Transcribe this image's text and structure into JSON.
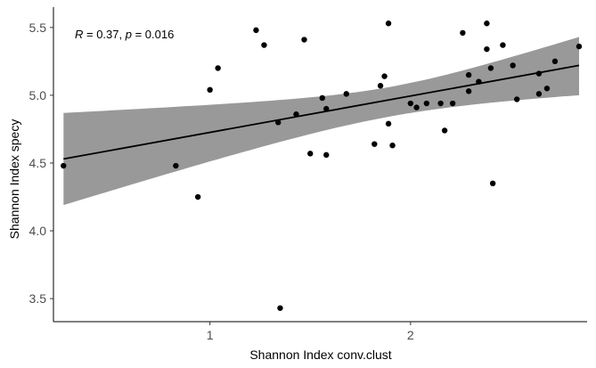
{
  "chart_data": {
    "type": "scatter",
    "title": "",
    "xlabel": "Shannon Index conv.clust",
    "ylabel": "Shannon Index specy",
    "xlim": [
      0.22,
      2.88
    ],
    "ylim": [
      3.33,
      5.65
    ],
    "x_ticks": [
      1,
      2
    ],
    "x_tick_labels": [
      "1",
      "2"
    ],
    "y_ticks": [
      3.5,
      4.0,
      4.5,
      5.0,
      5.5
    ],
    "y_tick_labels": [
      "3.5",
      "4.0",
      "4.5",
      "5.0",
      "5.5"
    ],
    "grid": false,
    "annotation": {
      "r_symbol": "R",
      "r_value": " = 0.37, ",
      "p_symbol": "p",
      "p_value": " = 0.016"
    },
    "regression": {
      "method": "lm",
      "x_start": 0.27,
      "x_end": 2.84,
      "y_start": 4.53,
      "y_end": 5.22,
      "ci_upper_start": 4.87,
      "ci_upper_end": 5.43,
      "ci_lower_start": 4.19,
      "ci_lower_end": 5.0,
      "ci_color": "#999999",
      "line_color": "#000000"
    },
    "point_color": "#000000",
    "points": [
      {
        "x": 0.27,
        "y": 4.48
      },
      {
        "x": 0.83,
        "y": 4.48
      },
      {
        "x": 0.94,
        "y": 4.25
      },
      {
        "x": 1.0,
        "y": 5.04
      },
      {
        "x": 1.04,
        "y": 5.2
      },
      {
        "x": 1.23,
        "y": 5.48
      },
      {
        "x": 1.27,
        "y": 5.37
      },
      {
        "x": 1.34,
        "y": 4.8
      },
      {
        "x": 1.35,
        "y": 3.43
      },
      {
        "x": 1.43,
        "y": 4.86
      },
      {
        "x": 1.47,
        "y": 5.41
      },
      {
        "x": 1.5,
        "y": 4.57
      },
      {
        "x": 1.56,
        "y": 4.98
      },
      {
        "x": 1.58,
        "y": 4.56
      },
      {
        "x": 1.58,
        "y": 4.9
      },
      {
        "x": 1.68,
        "y": 5.01
      },
      {
        "x": 1.82,
        "y": 4.64
      },
      {
        "x": 1.85,
        "y": 5.07
      },
      {
        "x": 1.87,
        "y": 5.14
      },
      {
        "x": 1.89,
        "y": 5.53
      },
      {
        "x": 1.89,
        "y": 4.79
      },
      {
        "x": 1.91,
        "y": 4.63
      },
      {
        "x": 2.0,
        "y": 4.94
      },
      {
        "x": 2.03,
        "y": 4.91
      },
      {
        "x": 2.08,
        "y": 4.94
      },
      {
        "x": 2.15,
        "y": 4.94
      },
      {
        "x": 2.17,
        "y": 4.74
      },
      {
        "x": 2.21,
        "y": 4.94
      },
      {
        "x": 2.26,
        "y": 5.46
      },
      {
        "x": 2.29,
        "y": 5.15
      },
      {
        "x": 2.29,
        "y": 5.03
      },
      {
        "x": 2.34,
        "y": 5.1
      },
      {
        "x": 2.38,
        "y": 5.53
      },
      {
        "x": 2.38,
        "y": 5.34
      },
      {
        "x": 2.4,
        "y": 5.2
      },
      {
        "x": 2.41,
        "y": 4.35
      },
      {
        "x": 2.46,
        "y": 5.37
      },
      {
        "x": 2.51,
        "y": 5.22
      },
      {
        "x": 2.53,
        "y": 4.97
      },
      {
        "x": 2.64,
        "y": 5.01
      },
      {
        "x": 2.64,
        "y": 5.16
      },
      {
        "x": 2.68,
        "y": 5.05
      },
      {
        "x": 2.72,
        "y": 5.25
      },
      {
        "x": 2.84,
        "y": 5.36
      }
    ]
  }
}
